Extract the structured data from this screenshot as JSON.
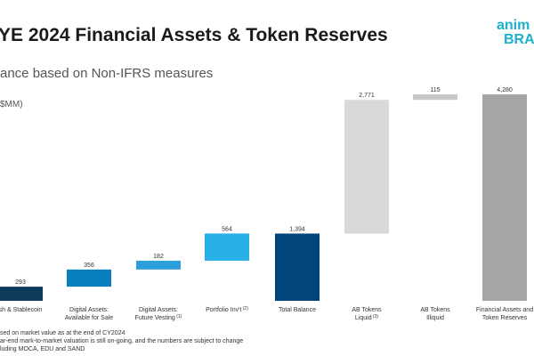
{
  "title": "YE 2024 Financial Assets & Token Reserves",
  "subtitle": "ance based on Non-IFRS measures",
  "unit_label": "$MM)",
  "logo": {
    "line1": "anim",
    "line2": "BRAN"
  },
  "footnotes": [
    "sed on market value as at the end of CY2024",
    "ar-end mark-to-market valuation is still on-going, and the numbers are subject to change",
    "luding MOCA, EDU and SAND"
  ],
  "chart_data": {
    "type": "bar",
    "subtype": "waterfall",
    "categories": [
      [
        "sh & Stablecoin"
      ],
      [
        "Digital Assets:",
        "Available for Sale"
      ],
      [
        "Digital Assets:",
        "Future Vesting"
      ],
      [
        "Portfolio Inv't"
      ],
      [
        "Total Balance"
      ],
      [
        "AB Tokens",
        "Liquid"
      ],
      [
        "AB Tokens",
        "Illiquid"
      ],
      [
        "Financial Assets and",
        "Token Reserves"
      ]
    ],
    "category_notes": [
      "",
      "",
      "(1)",
      "(2)",
      "",
      "(3)",
      "",
      ""
    ],
    "values": [
      293,
      356,
      182,
      564,
      1394,
      2771,
      115,
      4280
    ],
    "value_labels": [
      "293",
      "356",
      "182",
      "564",
      "1,394",
      "2,771",
      "115",
      "4,280"
    ],
    "kinds": [
      "delta",
      "delta",
      "delta",
      "delta",
      "total",
      "delta",
      "delta",
      "total"
    ],
    "colors": [
      "#0e3b5a",
      "#0a7fc0",
      "#2b9fd9",
      "#29aee5",
      "#00457c",
      "#d9d9d9",
      "#c8c8c8",
      "#a6a6a6"
    ],
    "ylim": [
      0,
      4280
    ],
    "grid": false,
    "legend": "none"
  }
}
